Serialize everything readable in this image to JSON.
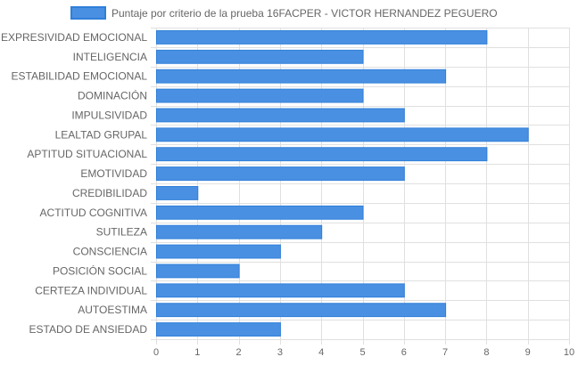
{
  "chart_data": {
    "type": "bar",
    "orientation": "horizontal",
    "legend": {
      "position": "top",
      "label": "Puntaje por criterio de la prueba 16FACPER - VICTOR HERNANDEZ PEGUERO"
    },
    "categories": [
      "EXPRESIVIDAD EMOCIONAL",
      "INTELIGENCIA",
      "ESTABILIDAD EMOCIONAL",
      "DOMINACIÓN",
      "IMPULSIVIDAD",
      "LEALTAD GRUPAL",
      "APTITUD SITUACIONAL",
      "EMOTIVIDAD",
      "CREDIBILIDAD",
      "ACTITUD COGNITIVA",
      "SUTILEZA",
      "CONSCIENCIA",
      "POSICIÓN SOCIAL",
      "CERTEZA INDIVIDUAL",
      "AUTOESTIMA",
      "ESTADO DE ANSIEDAD"
    ],
    "series": [
      {
        "name": "Puntaje por criterio de la prueba 16FACPER - VICTOR HERNANDEZ PEGUERO",
        "values": [
          8,
          5,
          7,
          5,
          6,
          9,
          8,
          6,
          1,
          5,
          4,
          3,
          2,
          6,
          7,
          3
        ],
        "color": "#4a90e2",
        "border_color": "#2f7fd9"
      }
    ],
    "xlim": [
      0,
      10
    ],
    "xticks": [
      "0",
      "1",
      "2",
      "3",
      "4",
      "5",
      "6",
      "7",
      "8",
      "9",
      "10"
    ],
    "grid": true,
    "grid_color": "#e0e0e0",
    "title": "",
    "xlabel": "",
    "ylabel": ""
  }
}
